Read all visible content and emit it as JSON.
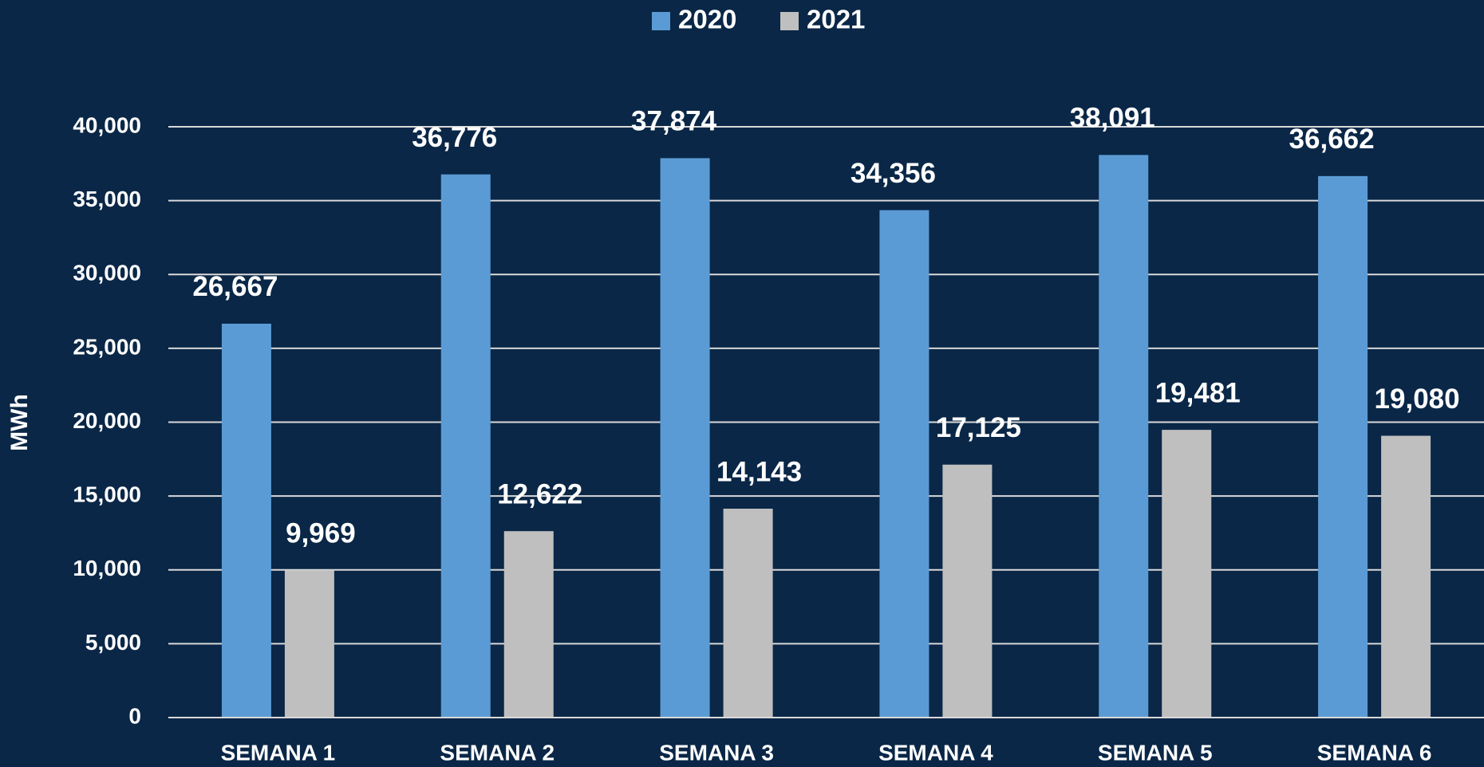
{
  "chart_data": {
    "type": "bar",
    "y_axis_label": "MWh",
    "categories": [
      "SEMANA 1",
      "SEMANA 2",
      "SEMANA 3",
      "SEMANA 4",
      "SEMANA 5",
      "SEMANA 6"
    ],
    "series": [
      {
        "name": "2020",
        "color": "#5b9bd5",
        "values": [
          26667,
          36776,
          37874,
          34356,
          38091,
          36662
        ],
        "value_labels": [
          "26,667",
          "36,776",
          "37,874",
          "34,356",
          "38,091",
          "36,662"
        ]
      },
      {
        "name": "2021",
        "color": "#bfbfbf",
        "values": [
          9969,
          12622,
          14143,
          17125,
          19481,
          19080
        ],
        "value_labels": [
          "9,969",
          "12,622",
          "14,143",
          "17,125",
          "19,481",
          "19,080"
        ]
      }
    ],
    "ylim": [
      0,
      40000
    ],
    "yticks": [
      0,
      {
        "value": 5000,
        "label": "5,000"
      },
      {
        "value": 10000,
        "label": "10,000"
      },
      {
        "value": 15000,
        "label": "15,000"
      },
      {
        "value": 20000,
        "label": "20,000"
      },
      {
        "value": 25000,
        "label": "25,000"
      },
      {
        "value": 30000,
        "label": "30,000"
      },
      {
        "value": 35000,
        "label": "35,000"
      },
      {
        "value": 40000,
        "label": "40,000"
      }
    ],
    "grid": true,
    "legend": "top"
  }
}
